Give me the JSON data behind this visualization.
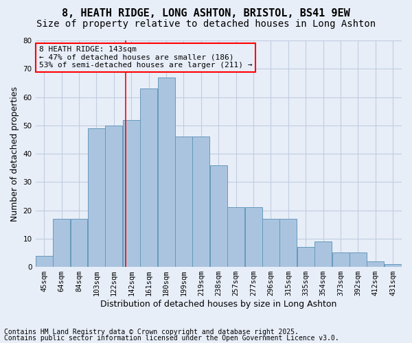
{
  "title1": "8, HEATH RIDGE, LONG ASHTON, BRISTOL, BS41 9EW",
  "title2": "Size of property relative to detached houses in Long Ashton",
  "xlabel": "Distribution of detached houses by size in Long Ashton",
  "ylabel": "Number of detached properties",
  "categories": [
    "45sqm",
    "64sqm",
    "84sqm",
    "103sqm",
    "122sqm",
    "142sqm",
    "161sqm",
    "180sqm",
    "199sqm",
    "219sqm",
    "238sqm",
    "257sqm",
    "277sqm",
    "296sqm",
    "315sqm",
    "335sqm",
    "354sqm",
    "373sqm",
    "392sqm",
    "412sqm",
    "431sqm"
  ],
  "bar_values": [
    4,
    17,
    17,
    49,
    50,
    52,
    63,
    67,
    46,
    46,
    36,
    21,
    21,
    17,
    17,
    7,
    9,
    5,
    5,
    2,
    1
  ],
  "bar_color": "#aac4e0",
  "bar_edge_color": "#6699bb",
  "vline_color": "red",
  "annotation_box_text": "8 HEATH RIDGE: 143sqm\n← 47% of detached houses are smaller (186)\n53% of semi-detached houses are larger (211) →",
  "annotation_box_color": "red",
  "ylim": [
    0,
    80
  ],
  "yticks": [
    0,
    10,
    20,
    30,
    40,
    50,
    60,
    70,
    80
  ],
  "grid_color": "#c0cce0",
  "bg_color": "#e8eef8",
  "footnote1": "Contains HM Land Registry data © Crown copyright and database right 2025.",
  "footnote2": "Contains public sector information licensed under the Open Government Licence v3.0.",
  "title_fontsize": 11,
  "subtitle_fontsize": 10,
  "axis_label_fontsize": 9,
  "tick_fontsize": 7.5,
  "annotation_fontsize": 8,
  "footnote_fontsize": 7
}
